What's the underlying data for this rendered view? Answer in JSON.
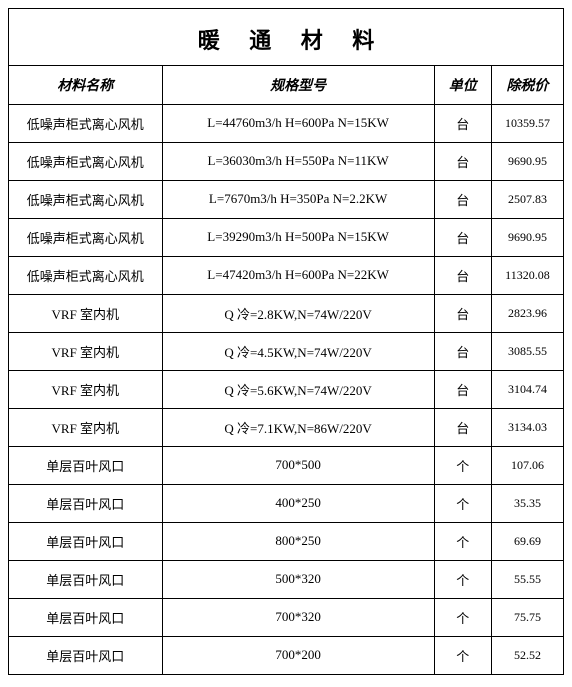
{
  "title": "暖 通 材 料",
  "columns": [
    "材料名称",
    "规格型号",
    "单位",
    "除税价"
  ],
  "rows": [
    [
      "低噪声柜式离心风机",
      "L=44760m3/h H=600Pa N=15KW",
      "台",
      "10359.57"
    ],
    [
      "低噪声柜式离心风机",
      "L=36030m3/h H=550Pa N=11KW",
      "台",
      "9690.95"
    ],
    [
      "低噪声柜式离心风机",
      "L=7670m3/h H=350Pa N=2.2KW",
      "台",
      "2507.83"
    ],
    [
      "低噪声柜式离心风机",
      "L=39290m3/h H=500Pa N=15KW",
      "台",
      "9690.95"
    ],
    [
      "低噪声柜式离心风机",
      "L=47420m3/h H=600Pa N=22KW",
      "台",
      "11320.08"
    ],
    [
      "VRF 室内机",
      "Q 冷=2.8KW,N=74W/220V",
      "台",
      "2823.96"
    ],
    [
      "VRF 室内机",
      "Q 冷=4.5KW,N=74W/220V",
      "台",
      "3085.55"
    ],
    [
      "VRF 室内机",
      "Q 冷=5.6KW,N=74W/220V",
      "台",
      "3104.74"
    ],
    [
      "VRF 室内机",
      "Q 冷=7.1KW,N=86W/220V",
      "台",
      "3134.03"
    ],
    [
      "单层百叶风口",
      "700*500",
      "个",
      "107.06"
    ],
    [
      "单层百叶风口",
      "400*250",
      "个",
      "35.35"
    ],
    [
      "单层百叶风口",
      "800*250",
      "个",
      "69.69"
    ],
    [
      "单层百叶风口",
      "500*320",
      "个",
      "55.55"
    ],
    [
      "单层百叶风口",
      "700*320",
      "个",
      "75.75"
    ],
    [
      "单层百叶风口",
      "700*200",
      "个",
      "52.52"
    ]
  ]
}
